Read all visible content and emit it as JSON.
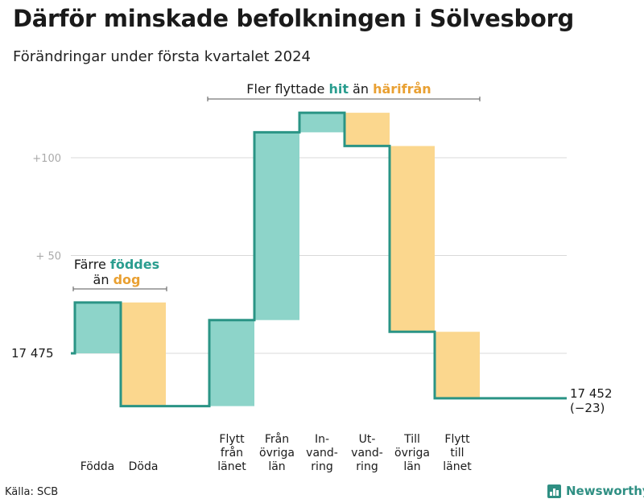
{
  "title": "Därför minskade befolkningen i Sölvesborg",
  "subtitle": "Förändringar under första kvartalet 2024",
  "source": "Källa: SCB",
  "logo_text": "Newsworthy",
  "colors": {
    "increase": "#8dd4c9",
    "decrease": "#fbd78e",
    "step_line": "#2a9485",
    "hit": "#2a9d8f",
    "harifran": "#e9a032",
    "grid": "#d9d9d9",
    "tick_text": "#aaaaaa"
  },
  "chart_data": {
    "type": "waterfall",
    "title": "Därför minskade befolkningen i Sölvesborg",
    "subtitle": "Förändringar under första kvartalet 2024",
    "start_value": 17475,
    "start_label": "17  475",
    "end_value": 17452,
    "end_label": "17 452",
    "end_change_label": "(−23)",
    "yticks": [
      {
        "offset": 50,
        "label": "+  50"
      },
      {
        "offset": 100,
        "label": "+100"
      }
    ],
    "ylim_offset": [
      -30,
      124
    ],
    "steps": [
      {
        "label": [
          "Födda"
        ],
        "delta": 26
      },
      {
        "label": [
          "Döda"
        ],
        "delta": -53
      },
      {
        "label": [
          "Flytt",
          "från",
          "länet"
        ],
        "delta": 44
      },
      {
        "label": [
          "Från",
          "övriga",
          "län"
        ],
        "delta": 96
      },
      {
        "label": [
          "In-",
          "vand-",
          "ring"
        ],
        "delta": 10
      },
      {
        "label": [
          "Ut-",
          "vand-",
          "ring"
        ],
        "delta": -17
      },
      {
        "label": [
          "Till",
          "övriga",
          "län"
        ],
        "delta": -95
      },
      {
        "label": [
          "Flytt",
          "till",
          "länet"
        ],
        "delta": -34
      }
    ],
    "annotations": {
      "left": {
        "line1_pre": "Färre ",
        "line1_em": "föddes",
        "line2_pre": "än ",
        "line2_em": "dog"
      },
      "top": {
        "pre": "Fler flyttade ",
        "em1": "hit",
        "mid": " än ",
        "em2": "härifrån"
      }
    }
  }
}
